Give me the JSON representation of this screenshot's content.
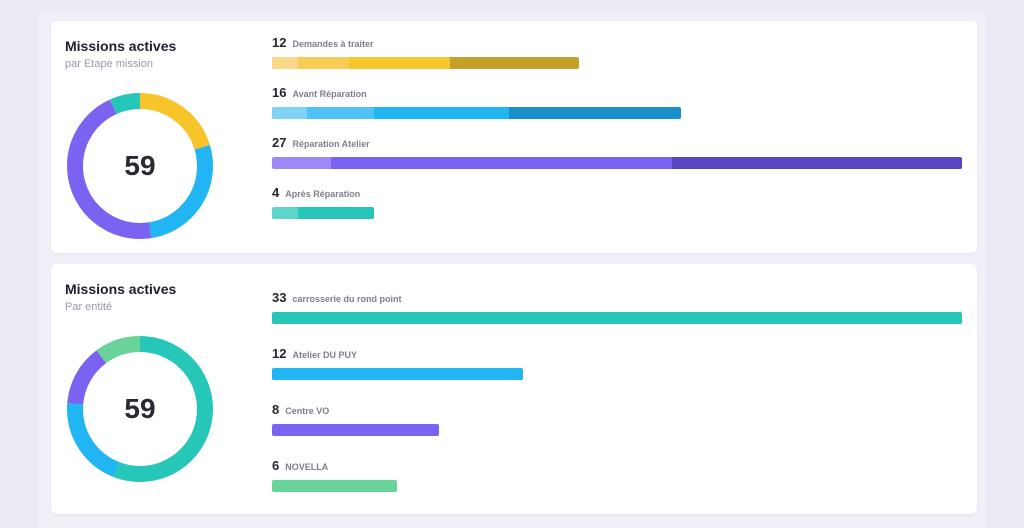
{
  "cards": [
    {
      "title": "Missions actives",
      "subtitle": "par Etape mission",
      "total": "59",
      "items": [
        {
          "count": "12",
          "label": "Demandes à traiter",
          "value": 12,
          "shades": [
            "#fbd98a",
            "#f9cc55",
            "#f7c52a",
            "#c5a12a"
          ],
          "color": "#f7c52a"
        },
        {
          "count": "16",
          "label": "Avant Réparation",
          "value": 16,
          "shades": [
            "#7fd3f7",
            "#4fc3f7",
            "#22b5f4",
            "#1a8fcb"
          ],
          "color": "#22b5f4"
        },
        {
          "count": "27",
          "label": "Réparation Atelier",
          "value": 27,
          "shades": [
            "#9d88f5",
            "#7b62f0",
            "#7b62f0",
            "#5a46c2"
          ],
          "color": "#7b62f0"
        },
        {
          "count": "4",
          "label": "Après Réparation",
          "value": 4,
          "shades": [
            "#5dd6c9",
            "#26c6b8"
          ],
          "color": "#26c6b8"
        }
      ]
    },
    {
      "title": "Missions actives",
      "subtitle": "Par entité",
      "total": "59",
      "items": [
        {
          "count": "33",
          "label": "carrosserie du rond point",
          "value": 33,
          "shades": [
            "#26c6b8"
          ],
          "color": "#26c6b8"
        },
        {
          "count": "12",
          "label": "Atelier DU PUY",
          "value": 12,
          "shades": [
            "#22b5f4"
          ],
          "color": "#22b5f4"
        },
        {
          "count": "8",
          "label": "Centre VO",
          "value": 8,
          "shades": [
            "#7b62f0"
          ],
          "color": "#7b62f0"
        },
        {
          "count": "6",
          "label": "NOVELLA",
          "value": 6,
          "shades": [
            "#69d39a"
          ],
          "color": "#69d39a"
        }
      ]
    }
  ]
}
